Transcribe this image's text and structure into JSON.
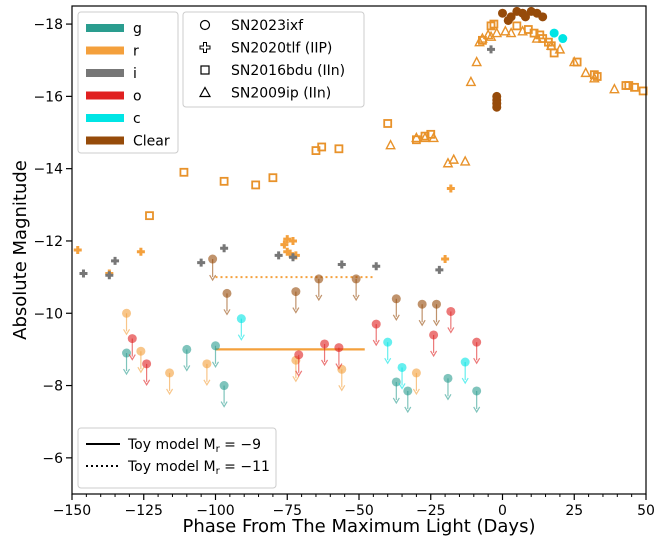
{
  "chart_data": {
    "type": "scatter",
    "xlabel": "Phase From The Maximum Light (Days)",
    "ylabel": "Absolute Magnitude",
    "xlim": [
      -150,
      50
    ],
    "ylim": [
      -5,
      -18.5
    ],
    "y_inverted": true,
    "grid": false,
    "xticks": [
      "−150",
      "−125",
      "−100",
      "−75",
      "−50",
      "−25",
      "0",
      "25",
      "50"
    ],
    "yticks": [
      "−18",
      "−16",
      "−14",
      "−12",
      "−10",
      "−8",
      "−6"
    ],
    "legend_filters": {
      "placement": "top-left",
      "entries": [
        {
          "label": "g",
          "color": "#2a9d8f"
        },
        {
          "label": "r",
          "color": "#f4a03c"
        },
        {
          "label": "i",
          "color": "#777777"
        },
        {
          "label": "o",
          "color": "#e02020"
        },
        {
          "label": "c",
          "color": "#00e5e5"
        },
        {
          "label": "Clear",
          "color": "#964b0a"
        }
      ]
    },
    "legend_objects": {
      "placement": "top-left",
      "entries": [
        {
          "label": "SN2023ixf",
          "marker": "circle"
        },
        {
          "label": "SN2020tlf (IIP)",
          "marker": "plus"
        },
        {
          "label": "SN2016bdu (IIn)",
          "marker": "square"
        },
        {
          "label": "SN2009ip (IIn)",
          "marker": "triangle"
        }
      ]
    },
    "legend_models": {
      "placement": "bottom-left",
      "entries": [
        {
          "label": "Toy model M",
          "sub": "r",
          "suffix": " = −9",
          "style": "solid"
        },
        {
          "label": "Toy model M",
          "sub": "r",
          "suffix": " = −11",
          "style": "dotted"
        }
      ]
    },
    "colors": {
      "g": "#2a9d8f",
      "r": "#f4a03c",
      "i": "#777777",
      "o": "#e02020",
      "c": "#00e5e5",
      "Clear": "#964b0a",
      "triangle": "#e8922a",
      "square": "#e8922a"
    },
    "toy_models": [
      {
        "name": "Toy model Mr = −9",
        "style": "solid",
        "x": [
          -100,
          -48
        ],
        "y": -9.0
      },
      {
        "name": "Toy model Mr = −11",
        "style": "dotted",
        "x": [
          -100,
          -45
        ],
        "y": -11.0
      }
    ],
    "series": [
      {
        "name": "SN2023ixf",
        "object": "SN2023ixf",
        "filter": "g",
        "marker": "circle",
        "upper_limit": true,
        "x": [
          -131,
          -110,
          -100,
          -97,
          -37,
          -33,
          -19,
          -9
        ],
        "y": [
          -8.9,
          -9.0,
          -9.1,
          -8.0,
          -8.1,
          -7.85,
          -8.2,
          -7.85
        ]
      },
      {
        "name": "SN2023ixf",
        "object": "SN2023ixf",
        "filter": "r",
        "marker": "circle",
        "upper_limit": true,
        "x": [
          -131,
          -126,
          -116,
          -103,
          -72,
          -56,
          -30
        ],
        "y": [
          -10.0,
          -8.95,
          -8.35,
          -8.6,
          -8.7,
          -8.45,
          -8.35
        ]
      },
      {
        "name": "SN2023ixf",
        "object": "SN2023ixf",
        "filter": "o",
        "marker": "circle",
        "upper_limit": true,
        "x": [
          -129,
          -124,
          -71,
          -62,
          -57,
          -44,
          -24,
          -18,
          -9
        ],
        "y": [
          -9.3,
          -8.6,
          -8.85,
          -9.15,
          -9.05,
          -9.7,
          -9.4,
          -10.05,
          -9.2
        ]
      },
      {
        "name": "SN2023ixf",
        "object": "SN2023ixf",
        "filter": "c",
        "marker": "circle",
        "upper_limit": true,
        "x": [
          -91,
          -40,
          -35,
          -13
        ],
        "y": [
          -9.85,
          -9.2,
          -8.5,
          -8.65
        ]
      },
      {
        "name": "SN2023ixf",
        "object": "SN2023ixf",
        "filter": "Clear",
        "marker": "circle",
        "upper_limit": true,
        "x": [
          -101,
          -96,
          -72,
          -64,
          -51,
          -37,
          -28,
          -23
        ],
        "y": [
          -11.5,
          -10.55,
          -10.6,
          -10.95,
          -10.95,
          -10.4,
          -10.25,
          -10.25
        ]
      },
      {
        "name": "SN2023ixf",
        "object": "SN2023ixf",
        "filter": "Clear",
        "marker": "circle",
        "upper_limit": false,
        "x": [
          -2,
          -2,
          -2,
          -2,
          0,
          2,
          3,
          5,
          7,
          8,
          10,
          12,
          14
        ],
        "y": [
          -15.7,
          -15.8,
          -15.9,
          -16.0,
          -18.3,
          -18.1,
          -18.2,
          -18.35,
          -18.3,
          -18.2,
          -18.35,
          -18.3,
          -18.2
        ]
      },
      {
        "name": "SN2023ixf",
        "object": "SN2023ixf",
        "filter": "c",
        "marker": "circle",
        "upper_limit": false,
        "x": [
          18,
          21
        ],
        "y": [
          -17.75,
          -17.6
        ]
      },
      {
        "name": "SN2020tlf (IIP)",
        "object": "SN2020tlf",
        "filter": "r",
        "marker": "plus",
        "x": [
          -148,
          -137,
          -126,
          -76,
          -75,
          -73,
          -74,
          -75,
          -72,
          -18,
          -20
        ],
        "y": [
          -11.75,
          -11.1,
          -11.7,
          -11.9,
          -12.05,
          -12.0,
          -11.65,
          -11.7,
          -11.6,
          -13.45,
          -11.5
        ]
      },
      {
        "name": "SN2020tlf (IIP)",
        "object": "SN2020tlf",
        "filter": "i",
        "marker": "plus",
        "x": [
          -146,
          -137,
          -135,
          -105,
          -97,
          -78,
          -73,
          -56,
          -44,
          -22,
          -4
        ],
        "y": [
          -11.1,
          -11.05,
          -11.45,
          -11.4,
          -11.8,
          -11.6,
          -11.55,
          -11.35,
          -11.3,
          -11.2,
          -17.3
        ]
      },
      {
        "name": "SN2016bdu (IIn)",
        "object": "SN2016bdu",
        "filter": "r",
        "marker": "square",
        "x": [
          -123,
          -111,
          -97,
          -86,
          -80,
          -65,
          -63,
          -57,
          -40,
          -30,
          -27,
          -25,
          -7,
          -4,
          -3,
          5,
          9,
          11,
          13,
          14,
          16,
          17,
          18,
          26,
          32,
          33,
          43,
          44,
          46,
          49
        ],
        "y": [
          -12.7,
          -13.9,
          -13.65,
          -13.55,
          -13.75,
          -14.5,
          -14.6,
          -14.55,
          -15.25,
          -14.8,
          -14.9,
          -14.95,
          -17.55,
          -17.95,
          -18.0,
          -17.95,
          -17.85,
          -17.75,
          -17.7,
          -17.6,
          -17.5,
          -17.4,
          -17.2,
          -16.95,
          -16.6,
          -16.55,
          -16.3,
          -16.3,
          -16.25,
          -16.15
        ]
      },
      {
        "name": "SN2009ip (IIn)",
        "object": "SN2009ip",
        "filter": "r",
        "marker": "triangle",
        "x": [
          -39,
          -30,
          -27,
          -24,
          -19,
          -17,
          -13,
          -11,
          -9,
          -8,
          -7,
          -5,
          -4,
          -2,
          1,
          3,
          7,
          12,
          17,
          20,
          25,
          29,
          32,
          39
        ],
        "y": [
          -14.65,
          -14.85,
          -14.85,
          -14.85,
          -14.15,
          -14.25,
          -14.2,
          -16.4,
          -16.95,
          -17.5,
          -17.6,
          -17.7,
          -17.65,
          -17.75,
          -17.8,
          -17.75,
          -17.8,
          -17.6,
          -17.4,
          -17.3,
          -16.95,
          -16.65,
          -16.5,
          -16.2
        ]
      }
    ]
  }
}
